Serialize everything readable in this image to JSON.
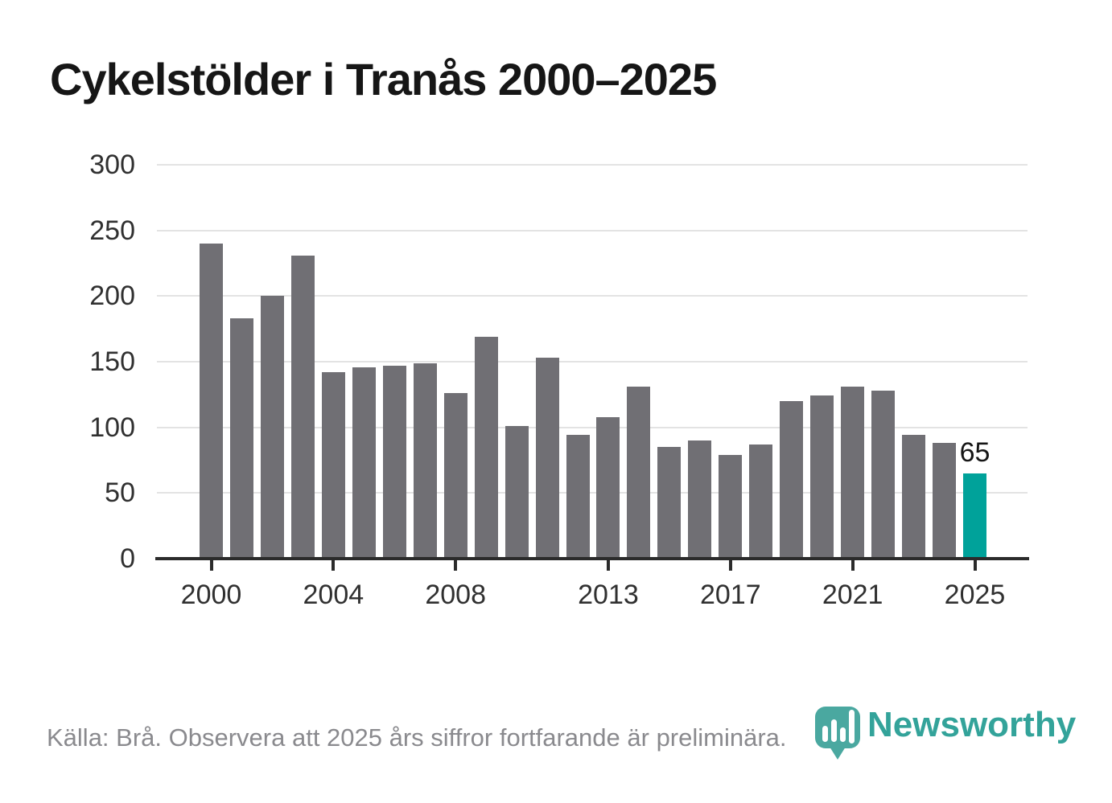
{
  "title": "Cykelstölder i Tranås 2000–2025",
  "footer": {
    "source_text": "Källa: Brå. Observera att 2025 års siffror fortfarande är preliminära."
  },
  "logo": {
    "name": "Newsworthy",
    "icon": "newsworthy-pin-barchart-icon"
  },
  "colors": {
    "bar_gray": "#706f74",
    "bar_highlight_teal": "#00a29a",
    "logo_teal": "#33a39a",
    "gridline": "#e3e3e3",
    "axis": "#2b2b2b",
    "tick_label": "#303030",
    "title_text": "#161616",
    "footer_text": "#8a8a8e"
  },
  "chart_data": {
    "type": "bar",
    "title": "Cykelstölder i Tranås 2000–2025",
    "xlabel": "",
    "ylabel": "",
    "x": [
      2000,
      2001,
      2002,
      2003,
      2004,
      2005,
      2006,
      2007,
      2008,
      2009,
      2010,
      2011,
      2012,
      2013,
      2014,
      2015,
      2016,
      2017,
      2018,
      2019,
      2020,
      2021,
      2022,
      2023,
      2024,
      2025
    ],
    "values": [
      240,
      183,
      200,
      231,
      142,
      146,
      147,
      149,
      126,
      169,
      101,
      153,
      94,
      108,
      131,
      85,
      90,
      79,
      87,
      120,
      124,
      131,
      128,
      94,
      88,
      65
    ],
    "ylim": [
      0,
      300
    ],
    "yticks": [
      0,
      50,
      100,
      150,
      200,
      250,
      300
    ],
    "xticks": [
      2000,
      2004,
      2008,
      2013,
      2017,
      2021,
      2025
    ],
    "grid": "horizontal",
    "legend": "none",
    "bar_color": "#706f74",
    "highlight_year": 2025,
    "highlight_color": "#00a29a",
    "highlight_label": "65"
  }
}
